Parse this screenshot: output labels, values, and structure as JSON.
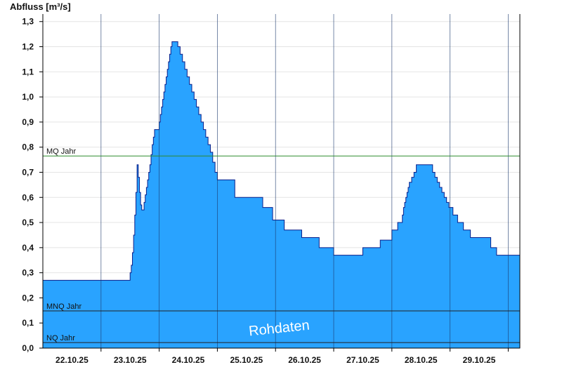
{
  "chart_data": {
    "type": "area",
    "ylabel": "Abfluss [m³/s]",
    "ylim": [
      0.0,
      1.33
    ],
    "yticks": [
      "0,0",
      "0,1",
      "0,2",
      "0,3",
      "0,4",
      "0,5",
      "0,6",
      "0,7",
      "0,8",
      "0,9",
      "1,0",
      "1,1",
      "1,2",
      "1,3"
    ],
    "xlim": [
      0,
      8.2
    ],
    "xtick_values": [
      0.5,
      1.5,
      2.5,
      3.5,
      4.5,
      5.5,
      6.5,
      7.5
    ],
    "xtick_labels": [
      "22.10.25",
      "23.10.25",
      "24.10.25",
      "25.10.25",
      "26.10.25",
      "27.10.25",
      "28.10.25",
      "29.10.25"
    ],
    "day_boundaries": [
      1,
      2,
      3,
      4,
      5,
      6,
      7,
      8
    ],
    "grid": true,
    "watermark": "Rohdaten",
    "reference_lines": [
      {
        "label": "MQ Jahr",
        "value": 0.765,
        "color": "#2e8b2e"
      },
      {
        "label": "MNQ Jahr",
        "value": 0.148,
        "color": "#222222"
      },
      {
        "label": "NQ Jahr",
        "value": 0.022,
        "color": "#222222"
      }
    ],
    "series": [
      {
        "color": "#29a3ff",
        "x": [
          0.0,
          1.48,
          1.5,
          1.52,
          1.54,
          1.56,
          1.58,
          1.6,
          1.62,
          1.64,
          1.66,
          1.68,
          1.7,
          1.72,
          1.74,
          1.76,
          1.78,
          1.8,
          1.82,
          1.84,
          1.86,
          1.88,
          1.9,
          1.92,
          1.94,
          1.96,
          1.98,
          2.0,
          2.02,
          2.04,
          2.06,
          2.08,
          2.1,
          2.12,
          2.14,
          2.16,
          2.18,
          2.2,
          2.22,
          2.24,
          2.28,
          2.32,
          2.36,
          2.4,
          2.44,
          2.48,
          2.52,
          2.56,
          2.6,
          2.64,
          2.68,
          2.72,
          2.76,
          2.8,
          2.84,
          2.88,
          2.92,
          2.96,
          3.0,
          3.3,
          3.65,
          3.78,
          3.95,
          4.15,
          4.45,
          4.75,
          5.0,
          5.25,
          5.5,
          5.6,
          5.8,
          6.0,
          6.1,
          6.18,
          6.2,
          6.22,
          6.24,
          6.26,
          6.28,
          6.3,
          6.34,
          6.38,
          6.42,
          6.46,
          6.5,
          6.54,
          6.58,
          6.62,
          6.66,
          6.7,
          6.74,
          6.78,
          6.82,
          6.86,
          6.9,
          6.94,
          6.98,
          7.05,
          7.13,
          7.23,
          7.35,
          7.5,
          7.7,
          7.8,
          8.2
        ],
        "values": [
          0.27,
          0.27,
          0.3,
          0.33,
          0.38,
          0.45,
          0.53,
          0.62,
          0.73,
          0.68,
          0.62,
          0.57,
          0.55,
          0.55,
          0.58,
          0.61,
          0.64,
          0.67,
          0.7,
          0.73,
          0.77,
          0.81,
          0.84,
          0.87,
          0.87,
          0.87,
          0.87,
          0.9,
          0.93,
          0.96,
          0.99,
          1.02,
          1.05,
          1.08,
          1.11,
          1.14,
          1.17,
          1.2,
          1.22,
          1.22,
          1.22,
          1.2,
          1.17,
          1.14,
          1.11,
          1.08,
          1.05,
          1.02,
          0.99,
          0.96,
          0.93,
          0.9,
          0.87,
          0.84,
          0.81,
          0.78,
          0.74,
          0.7,
          0.67,
          0.6,
          0.6,
          0.56,
          0.51,
          0.47,
          0.44,
          0.4,
          0.37,
          0.37,
          0.4,
          0.4,
          0.43,
          0.47,
          0.5,
          0.53,
          0.56,
          0.58,
          0.6,
          0.62,
          0.64,
          0.66,
          0.68,
          0.7,
          0.73,
          0.73,
          0.73,
          0.73,
          0.73,
          0.73,
          0.73,
          0.7,
          0.68,
          0.66,
          0.64,
          0.62,
          0.6,
          0.58,
          0.56,
          0.53,
          0.5,
          0.47,
          0.44,
          0.44,
          0.4,
          0.37,
          0.37
        ]
      }
    ]
  }
}
